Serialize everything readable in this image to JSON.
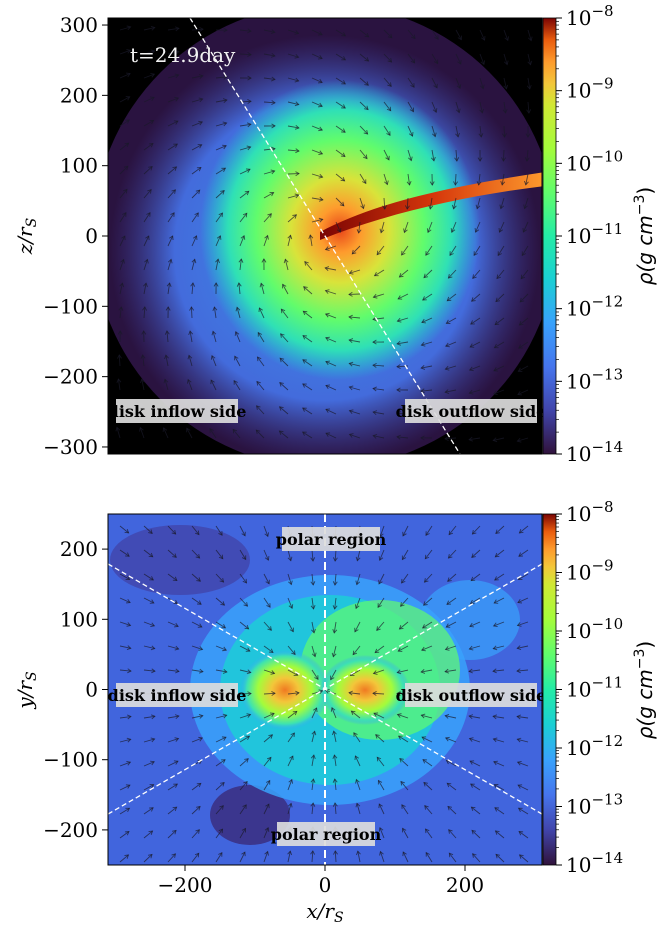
{
  "chart_data": [
    {
      "type": "heatmap",
      "panel": "top",
      "annotation": "t=24.9day",
      "xlim": [
        -310,
        310
      ],
      "ylim": [
        -310,
        310
      ],
      "ylabel": "z/r_S",
      "yticks": [
        300,
        200,
        100,
        0,
        -100,
        -200,
        -300
      ],
      "region_labels": [
        "disk inflow side",
        "disk outflow side"
      ],
      "colorbar": {
        "label": "ρ(g cm⁻³)",
        "scale": "log",
        "range": [
          1e-14,
          1e-08
        ],
        "tick_labels": [
          "10⁻⁸",
          "10⁻⁹",
          "10⁻¹⁰",
          "10⁻¹¹",
          "10⁻¹²",
          "10⁻¹³",
          "10⁻¹⁴"
        ],
        "colormap": "turbo"
      },
      "background_color": "#2a1340"
    },
    {
      "type": "heatmap",
      "panel": "bottom",
      "xlim": [
        -310,
        310
      ],
      "ylim": [
        -250,
        250
      ],
      "xlabel": "x/r_S",
      "ylabel": "y/r_S",
      "xticks": [
        -200,
        0,
        200
      ],
      "yticks": [
        200,
        100,
        0,
        -100,
        -200
      ],
      "region_labels": [
        "polar region",
        "disk inflow side",
        "disk outflow side",
        "polar region"
      ],
      "colorbar": {
        "label": "ρ(g cm⁻³)",
        "scale": "log",
        "range": [
          1e-14,
          1e-08
        ],
        "tick_labels": [
          "10⁻⁸",
          "10⁻⁹",
          "10⁻¹⁰",
          "10⁻¹¹",
          "10⁻¹²",
          "10⁻¹³",
          "10⁻¹⁴"
        ],
        "colormap": "turbo"
      },
      "background_color": "#3a4fc6"
    }
  ],
  "labels": {
    "top_time": "t=24.9day",
    "top_ylabel_main": "z/r",
    "top_ylabel_sub": "S",
    "bottom_ylabel_main": "y/r",
    "bottom_ylabel_sub": "S",
    "bottom_xlabel_main": "x/r",
    "bottom_xlabel_sub": "S",
    "inflow": "disk inflow side",
    "outflow": "disk outflow side",
    "polar": "polar region",
    "cb_label_main": "ρ(g cm",
    "cb_label_exp": "−3",
    "cb_label_close": ")"
  },
  "ticks": {
    "top_y": [
      "300",
      "200",
      "100",
      "0",
      "−100",
      "−200",
      "−300"
    ],
    "bottom_y": [
      "200",
      "100",
      "0",
      "−100",
      "−200"
    ],
    "bottom_x": [
      "−200",
      "0",
      "200"
    ],
    "cb_exp": [
      "−8",
      "−9",
      "−10",
      "−11",
      "−12",
      "−13",
      "−14"
    ],
    "cb_base": "10"
  }
}
